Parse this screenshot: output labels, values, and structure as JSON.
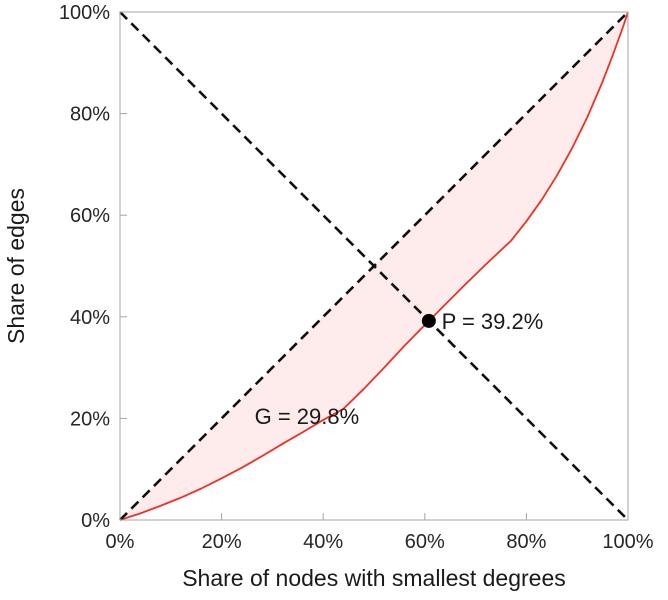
{
  "chart_data": {
    "type": "line",
    "title": "",
    "xlabel": "Share of nodes with smallest degrees",
    "ylabel": "Share of edges",
    "xlim": [
      0,
      100
    ],
    "ylim": [
      0,
      100
    ],
    "grid": false,
    "x_ticks": [
      0,
      20,
      40,
      60,
      80,
      100
    ],
    "y_ticks": [
      0,
      20,
      40,
      60,
      80,
      100
    ],
    "x_tick_labels": [
      "0%",
      "20%",
      "40%",
      "60%",
      "80%",
      "100%"
    ],
    "y_tick_labels": [
      "0%",
      "20%",
      "40%",
      "60%",
      "80%",
      "100%"
    ],
    "series": [
      {
        "name": "lorenz-curve",
        "color": "#ee3124",
        "style": "solid",
        "width": 1.8,
        "points": [
          [
            0,
            0
          ],
          [
            4,
            1.3
          ],
          [
            8,
            2.8
          ],
          [
            12,
            4.4
          ],
          [
            16,
            6.2
          ],
          [
            20,
            8.2
          ],
          [
            24,
            10.3
          ],
          [
            28,
            12.6
          ],
          [
            32,
            15.0
          ],
          [
            36,
            17.3
          ],
          [
            40,
            19.7
          ],
          [
            44,
            21.9
          ],
          [
            48,
            25.8
          ],
          [
            52,
            30.0
          ],
          [
            56,
            34.3
          ],
          [
            60.8,
            39.2
          ],
          [
            64,
            42.4
          ],
          [
            68,
            46.4
          ],
          [
            72,
            50.3
          ],
          [
            77,
            55.0
          ],
          [
            80,
            58.8
          ],
          [
            83,
            63.0
          ],
          [
            86,
            67.8
          ],
          [
            89,
            73.2
          ],
          [
            92,
            79.3
          ],
          [
            95,
            86.3
          ],
          [
            97,
            91.5
          ],
          [
            99,
            97.0
          ],
          [
            100,
            100
          ]
        ]
      },
      {
        "name": "equality-diagonal",
        "color": "#111111",
        "style": "dashed",
        "width": 2.6,
        "points": [
          [
            0,
            0
          ],
          [
            100,
            100
          ]
        ]
      },
      {
        "name": "anti-diagonal",
        "color": "#111111",
        "style": "dashed",
        "width": 2.6,
        "points": [
          [
            0,
            100
          ],
          [
            100,
            0
          ]
        ]
      }
    ],
    "shaded_area": {
      "between": [
        "lorenz-curve",
        "equality-diagonal"
      ],
      "fill": "#fdeceb"
    },
    "point_marker": {
      "x": 60.8,
      "y": 39.2,
      "radius": 7,
      "color": "#000000"
    },
    "annotations": [
      {
        "text": "P = 39.2%",
        "x": 63.3,
        "y": 39.2,
        "anchor": "start"
      },
      {
        "text": "G = 29.8%",
        "x": 26.5,
        "y": 20.5,
        "anchor": "start"
      }
    ],
    "gini": "29.8%",
    "p_value": "39.2%"
  },
  "style": {
    "axis_color": "#a6a6a6",
    "tick_length": 7,
    "dash_pattern": "10 6",
    "background": "#ffffff"
  }
}
